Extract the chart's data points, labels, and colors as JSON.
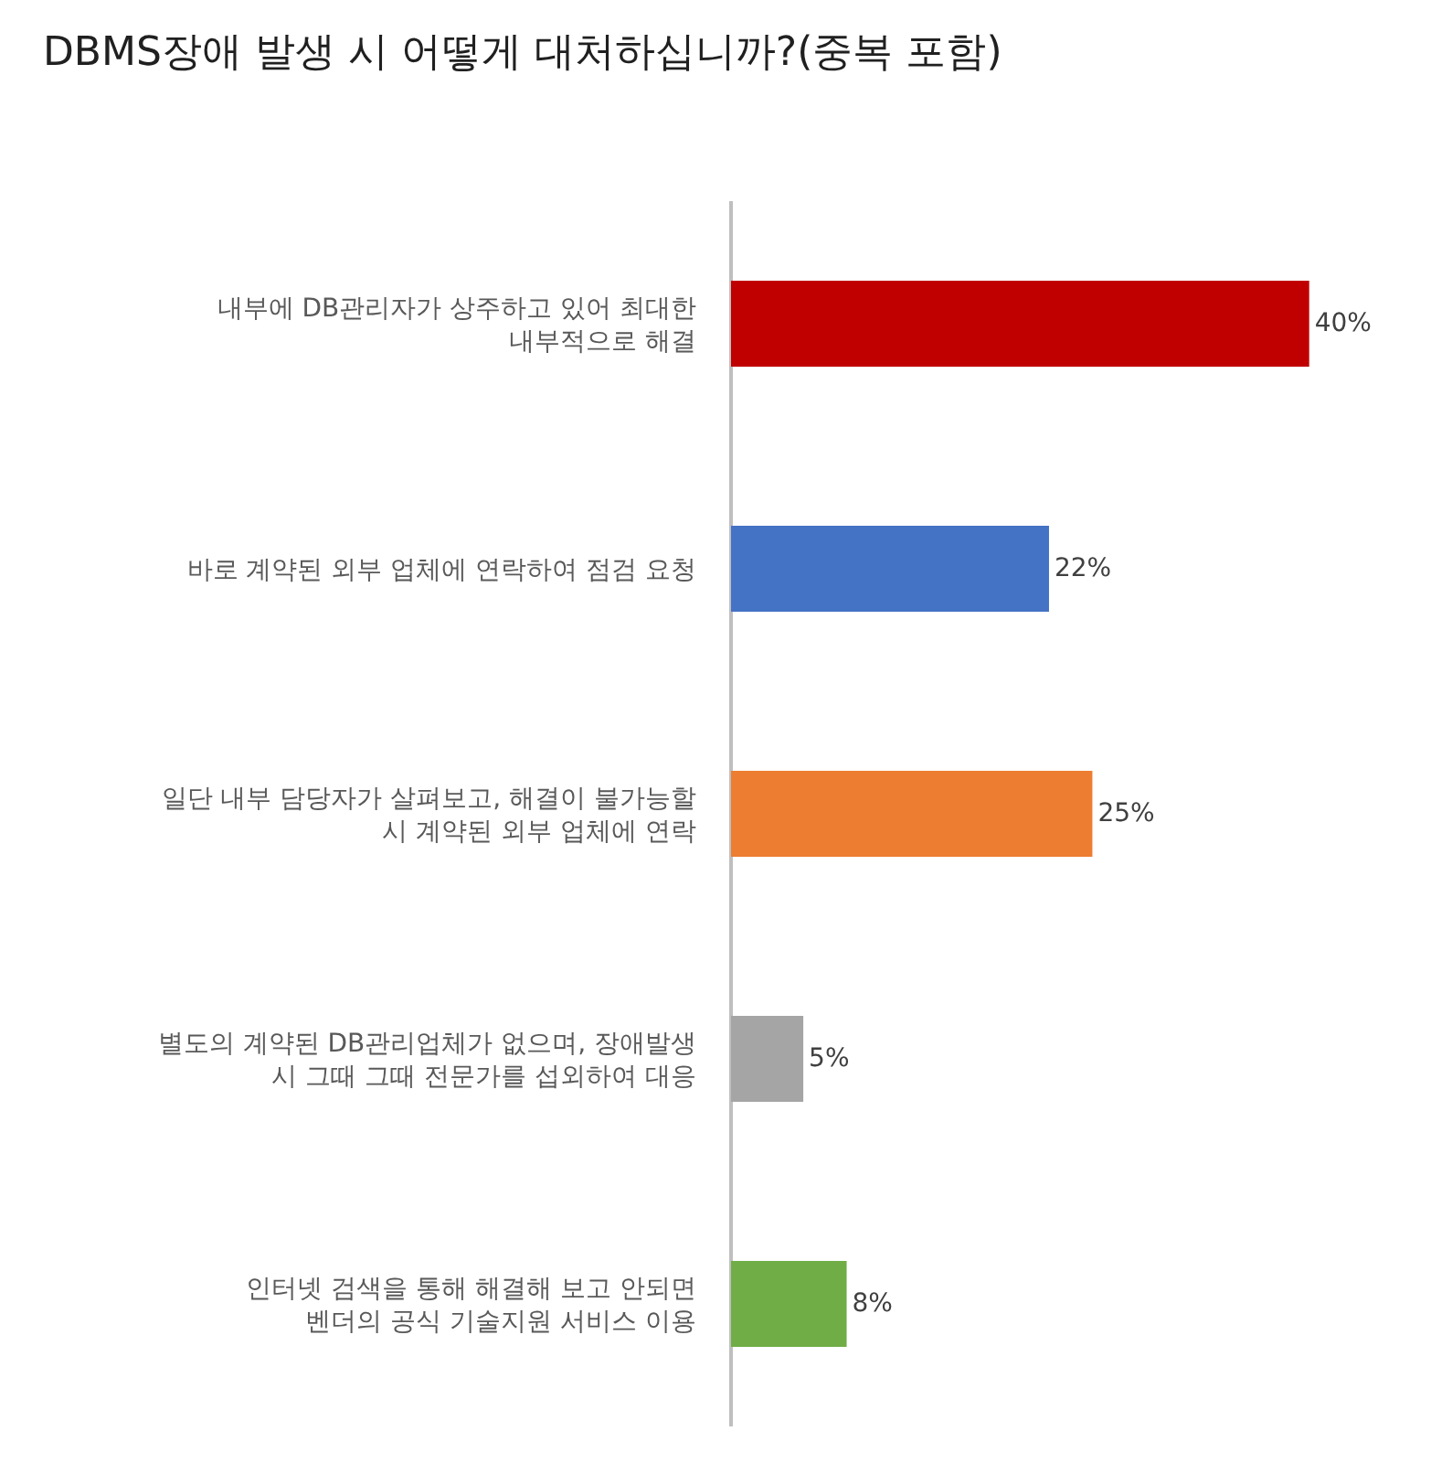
{
  "chart_data": {
    "type": "bar",
    "orientation": "horizontal",
    "title": "DBMS장애 발생 시 어떻게 대처하십니까?(중복 포함)",
    "categories": [
      "내부에 DB관리자가 상주하고 있어 최대한\n내부적으로 해결",
      "바로 계약된 외부 업체에 연락하여 점검 요청",
      "일단 내부 담당자가 살펴보고, 해결이 불가능할\n시 계약된 외부 업체에 연락",
      "별도의 계약된 DB관리업체가 없으며, 장애발생\n시 그때 그때 전문가를 섭외하여 대응",
      "인터넷 검색을 통해 해결해 보고 안되면\n벤더의 공식 기술지원 서비스 이용"
    ],
    "values": [
      40,
      22,
      25,
      5,
      8
    ],
    "colors": [
      "#c00000",
      "#4472c4",
      "#ed7d31",
      "#a5a5a5",
      "#70ad47"
    ],
    "value_labels": [
      "40%",
      "22%",
      "25%",
      "5%",
      "8%"
    ],
    "legend": false
  }
}
